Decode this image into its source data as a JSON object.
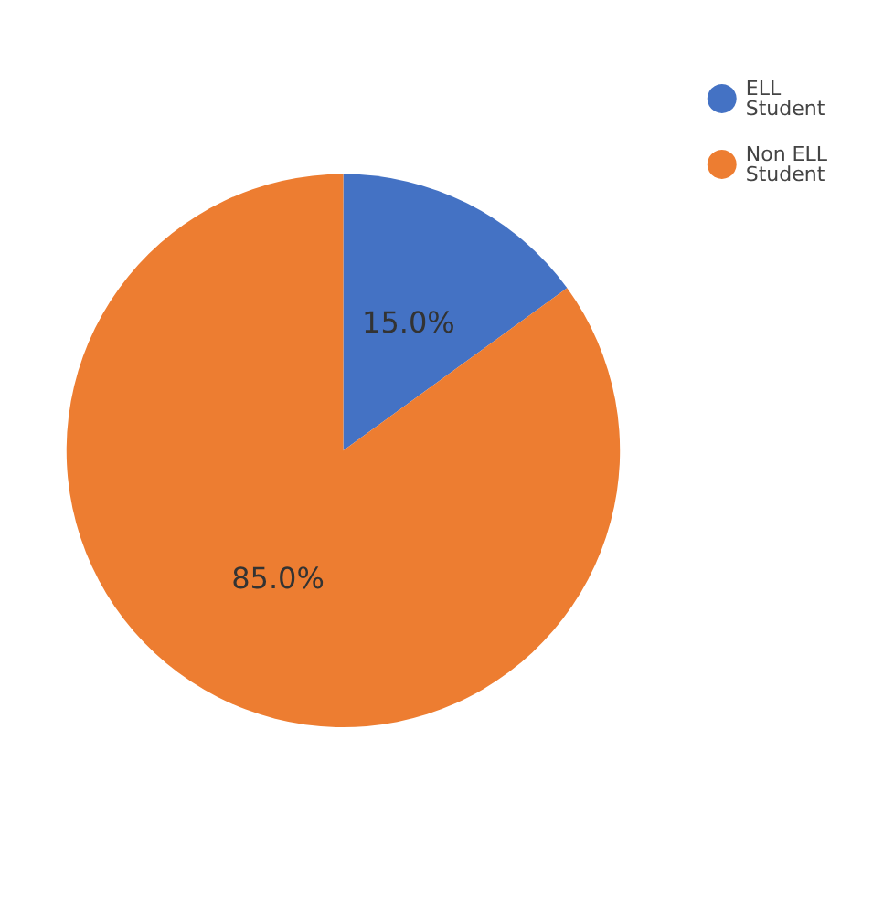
{
  "chart_data": {
    "type": "pie",
    "categories": [
      "ELL Student",
      "Non ELL Student"
    ],
    "values": [
      15,
      85
    ],
    "colors": [
      "#4472c4",
      "#ed7d31"
    ],
    "value_labels": [
      "15.0%",
      "85.0%"
    ],
    "legend": "top right"
  }
}
